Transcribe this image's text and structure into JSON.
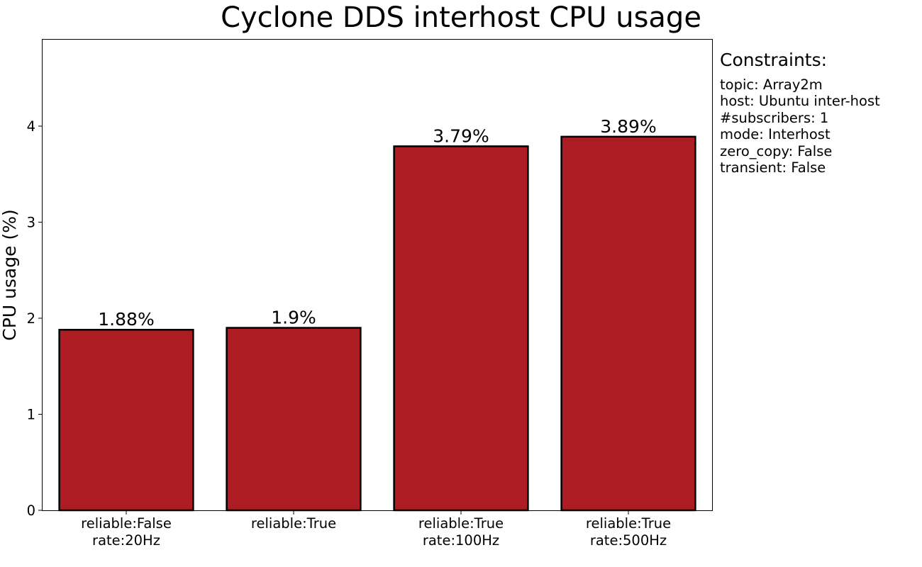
{
  "chart_data": {
    "type": "bar",
    "title": "Cyclone DDS interhost CPU usage",
    "xlabel": "",
    "ylabel": "CPU usage (%)",
    "ylim": [
      0,
      4.9
    ],
    "yticks": [
      0,
      1,
      2,
      3,
      4
    ],
    "categories": [
      [
        "reliable:False",
        "rate:20Hz"
      ],
      [
        "reliable:True"
      ],
      [
        "reliable:True",
        "rate:100Hz"
      ],
      [
        "reliable:True",
        "rate:500Hz"
      ]
    ],
    "values": [
      1.88,
      1.9,
      3.79,
      3.89
    ],
    "data_labels": [
      "1.88%",
      "1.9%",
      "3.79%",
      "3.89%"
    ],
    "bar_color": "#ad1c22",
    "bar_edge_color": "#000000",
    "grid": false,
    "legend": "none"
  },
  "constraints": {
    "title": "Constraints:",
    "lines": [
      "topic: Array2m",
      "host: Ubuntu inter-host",
      "#subscribers: 1",
      "mode: Interhost",
      "zero_copy: False",
      "transient: False"
    ]
  }
}
